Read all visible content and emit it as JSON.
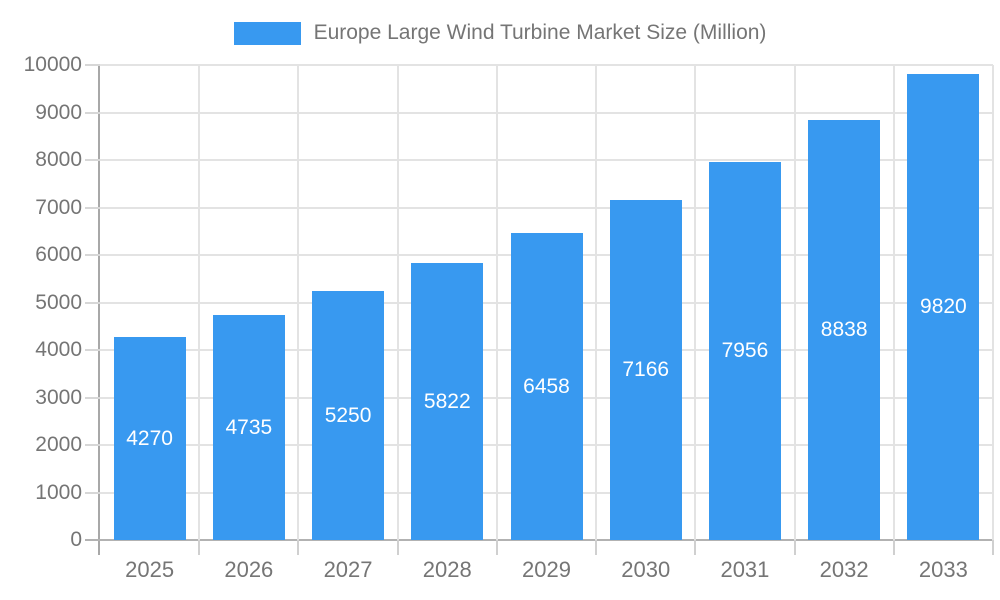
{
  "chart_data": {
    "type": "bar",
    "title": "Europe Large Wind Turbine Market Size (Million)",
    "categories": [
      "2025",
      "2026",
      "2027",
      "2028",
      "2029",
      "2030",
      "2031",
      "2032",
      "2033"
    ],
    "values": [
      4270,
      4735,
      5250,
      5822,
      6458,
      7166,
      7956,
      8838,
      9820
    ],
    "xlabel": "",
    "ylabel": "",
    "ylim": [
      0,
      10000
    ],
    "ytick_step": 1000,
    "ytick_labels": [
      "0",
      "1000",
      "2000",
      "3000",
      "4000",
      "5000",
      "6000",
      "7000",
      "8000",
      "9000",
      "10000"
    ],
    "grid": true,
    "legend_position": "top",
    "colors": {
      "bar_fill": "#3899f0",
      "bar_value_text": "#ffffff",
      "axis_label_text": "#757575",
      "legend_text": "#757575",
      "gridline": "#e3e3e3",
      "axis_line": "#a8a8a8",
      "baseline": "#b2b2b2"
    }
  }
}
